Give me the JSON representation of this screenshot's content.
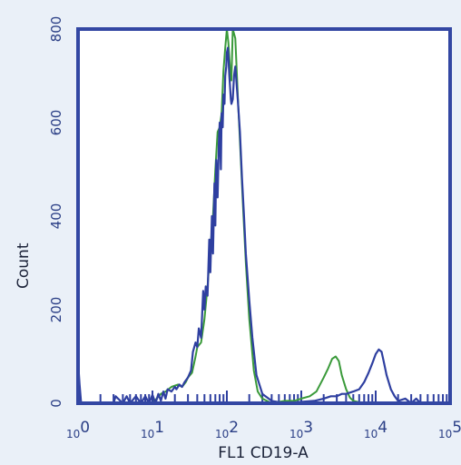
{
  "chart_data": {
    "type": "line",
    "title": "",
    "xlabel": "FL1 CD19-A",
    "ylabel": "Count",
    "x_scale": "log",
    "xlim": [
      1,
      100000
    ],
    "ylim": [
      0,
      800
    ],
    "x_ticks": [
      {
        "base": "10",
        "exp": "0",
        "value": 1
      },
      {
        "base": "10",
        "exp": "1",
        "value": 10
      },
      {
        "base": "10",
        "exp": "2",
        "value": 100
      },
      {
        "base": "10",
        "exp": "3",
        "value": 1000
      },
      {
        "base": "10",
        "exp": "4",
        "value": 10000
      },
      {
        "base": "10",
        "exp": "5",
        "value": 100000
      }
    ],
    "y_ticks": [
      "0",
      "200",
      "400",
      "600",
      "800"
    ],
    "grid": false,
    "colors": {
      "frame": "#3347a3",
      "series_green": "#3a9a3a",
      "series_blue": "#2e3fa0",
      "background": "#eaf0f8",
      "plot_background": "#ffffff"
    },
    "series": [
      {
        "color": "#3a9a3a",
        "x": [
          1,
          3,
          10,
          13,
          15,
          18,
          22,
          25,
          28,
          30,
          34,
          38,
          40,
          45,
          50,
          55,
          60,
          65,
          70,
          75,
          80,
          85,
          90,
          95,
          100,
          105,
          110,
          115,
          120,
          130,
          140,
          150,
          165,
          180,
          200,
          230,
          260,
          300,
          400,
          600,
          800,
          1000,
          1300,
          1600,
          2000,
          2300,
          2600,
          2900,
          3200,
          3500,
          4000,
          4500,
          5000,
          6000,
          8000,
          10000,
          30000,
          100000
        ],
        "y": [
          0,
          0,
          0,
          20,
          25,
          35,
          40,
          35,
          45,
          55,
          65,
          100,
          120,
          130,
          180,
          250,
          330,
          400,
          500,
          580,
          590,
          620,
          710,
          760,
          800,
          770,
          720,
          690,
          800,
          780,
          660,
          560,
          420,
          300,
          180,
          70,
          25,
          10,
          0,
          5,
          5,
          10,
          15,
          25,
          55,
          75,
          95,
          100,
          90,
          60,
          30,
          12,
          5,
          2,
          0,
          0,
          0,
          0
        ]
      },
      {
        "color": "#2e3fa0",
        "x": [
          1,
          1.05,
          1.1,
          3,
          3.2,
          4,
          4.5,
          5,
          6,
          7,
          8,
          9,
          10,
          11,
          12,
          13,
          14,
          15,
          16,
          18,
          20,
          21,
          23,
          25,
          27,
          30,
          33,
          35,
          38,
          40,
          42,
          45,
          48,
          50,
          52,
          55,
          58,
          60,
          63,
          65,
          68,
          70,
          72,
          75,
          78,
          80,
          83,
          85,
          88,
          90,
          93,
          95,
          98,
          100,
          103,
          105,
          108,
          110,
          113,
          115,
          120,
          125,
          130,
          140,
          150,
          160,
          170,
          180,
          200,
          220,
          250,
          300,
          400,
          600,
          1000,
          1500,
          2000,
          2500,
          3000,
          3500,
          4000,
          5000,
          6000,
          7000,
          8000,
          9000,
          10000,
          11000,
          12000,
          13000,
          14000,
          16000,
          18000,
          20000,
          25000,
          30000,
          35000,
          40000,
          50000,
          100000
        ],
        "y": [
          90,
          40,
          0,
          0,
          15,
          0,
          15,
          0,
          15,
          0,
          15,
          0,
          18,
          0,
          20,
          5,
          25,
          10,
          30,
          25,
          35,
          30,
          40,
          35,
          45,
          55,
          70,
          110,
          130,
          120,
          160,
          140,
          240,
          200,
          250,
          230,
          350,
          280,
          400,
          320,
          470,
          380,
          520,
          440,
          560,
          600,
          500,
          620,
          590,
          660,
          640,
          700,
          720,
          750,
          760,
          740,
          700,
          680,
          650,
          640,
          650,
          700,
          720,
          650,
          580,
          480,
          400,
          320,
          220,
          140,
          60,
          20,
          5,
          0,
          3,
          5,
          10,
          15,
          15,
          20,
          20,
          25,
          30,
          45,
          65,
          85,
          105,
          115,
          110,
          85,
          60,
          30,
          15,
          5,
          10,
          0,
          10,
          0,
          0,
          0
        ]
      }
    ]
  }
}
